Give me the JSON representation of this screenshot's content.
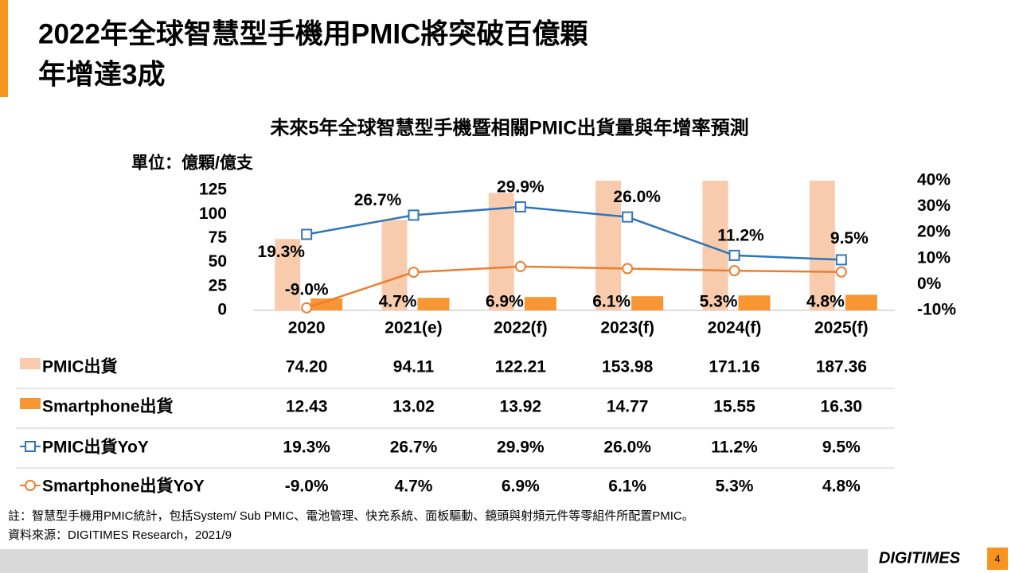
{
  "page": {
    "title_lines": [
      "2022年全球智慧型手機用PMIC將突破百億顆",
      "年增達3成"
    ],
    "logo": "DIGITIMES",
    "page_number": "4"
  },
  "chart_data": {
    "type": "combo",
    "title": "未來5年全球智慧型手機暨相關PMIC出貨量與年增率預測",
    "y_label": "單位：億顆/億支",
    "categories": [
      "2020",
      "2021(e)",
      "2022(f)",
      "2023(f)",
      "2024(f)",
      "2025(f)"
    ],
    "ylim": [
      0,
      135
    ],
    "yticks": [
      0,
      25,
      50,
      75,
      100,
      125
    ],
    "y2lim": [
      -10,
      40
    ],
    "y2ticks": [
      {
        "value": 40,
        "label": "40%"
      },
      {
        "value": 30,
        "label": "30%"
      },
      {
        "value": 20,
        "label": "20%"
      },
      {
        "value": 10,
        "label": "10%"
      },
      {
        "value": 0,
        "label": "0%"
      },
      {
        "value": -10,
        "label": "-10%"
      }
    ],
    "series": [
      {
        "name": "PMIC出貨",
        "type": "bar",
        "color": "#f8cbad",
        "values": [
          74.2,
          94.11,
          122.21,
          153.98,
          171.16,
          187.36
        ],
        "value_labels": [
          "74.20",
          "94.11",
          "122.21",
          "153.98",
          "171.16",
          "187.36"
        ]
      },
      {
        "name": "Smartphone出貨",
        "type": "bar",
        "color": "#f79633",
        "values": [
          12.43,
          13.02,
          13.92,
          14.77,
          15.55,
          16.3
        ],
        "value_labels": [
          "12.43",
          "13.02",
          "13.92",
          "14.77",
          "15.55",
          "16.30"
        ]
      },
      {
        "name": "PMIC出貨YoY",
        "type": "line",
        "axis": "y2",
        "marker": "square",
        "color": "#2e75b6",
        "values": [
          19.3,
          26.7,
          29.9,
          26.0,
          11.2,
          9.5
        ],
        "value_labels": [
          "19.3%",
          "26.7%",
          "29.9%",
          "26.0%",
          "11.2%",
          "9.5%"
        ]
      },
      {
        "name": "Smartphone出貨YoY",
        "type": "line",
        "axis": "y2",
        "marker": "circle",
        "color": "#ed7d31",
        "values": [
          -9.0,
          4.7,
          6.9,
          6.1,
          5.3,
          4.8
        ],
        "value_labels": [
          "-9.0%",
          "4.7%",
          "6.9%",
          "6.1%",
          "5.3%",
          "4.8%"
        ]
      }
    ]
  },
  "notes": [
    "註：智慧型手機用PMIC統計，包括System/ Sub PMIC、電池管理、快充系統、面板驅動、鏡頭與射頻元件等零組件所配置PMIC。",
    "資料來源：DIGITIMES Research，2021/9"
  ]
}
